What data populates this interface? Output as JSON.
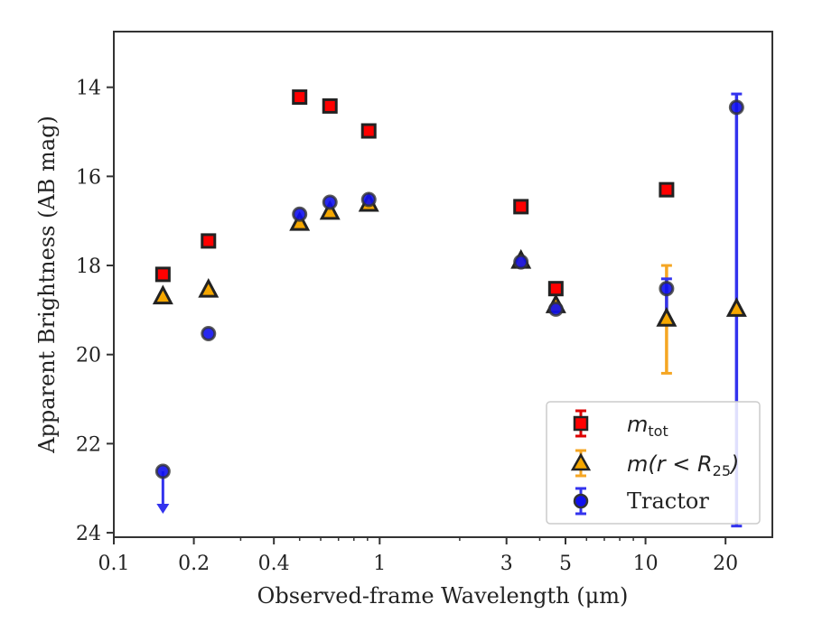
{
  "chart_data": {
    "type": "scatter",
    "xlabel": "Observed-frame Wavelength (μm)",
    "ylabel": "Apparent Brightness (AB mag)",
    "xscale": "log",
    "yaxis_inverted": true,
    "xlim": [
      0.1,
      30
    ],
    "ylim": [
      24.1,
      12.75
    ],
    "xticks": [
      {
        "value": 0.1,
        "label": "0.1"
      },
      {
        "value": 0.2,
        "label": "0.2"
      },
      {
        "value": 0.4,
        "label": "0.4"
      },
      {
        "value": 1,
        "label": "1"
      },
      {
        "value": 3,
        "label": "3"
      },
      {
        "value": 5,
        "label": "5"
      },
      {
        "value": 10,
        "label": "10"
      },
      {
        "value": 20,
        "label": "20"
      }
    ],
    "yticks": [
      {
        "value": 14,
        "label": "14"
      },
      {
        "value": 16,
        "label": "16"
      },
      {
        "value": 18,
        "label": "18"
      },
      {
        "value": 20,
        "label": "20"
      },
      {
        "value": 22,
        "label": "22"
      },
      {
        "value": 24,
        "label": "24"
      }
    ],
    "legend_position": "lower-right",
    "series": [
      {
        "legend_label": "m_tot",
        "marker": "square",
        "face_color": "#ff0000",
        "edge_color": "#222222",
        "errorbar_color": "#dd0000",
        "points": [
          {
            "x": 0.153,
            "y": 18.2
          },
          {
            "x": 0.227,
            "y": 17.45
          },
          {
            "x": 0.5,
            "y": 14.22
          },
          {
            "x": 0.65,
            "y": 14.42
          },
          {
            "x": 0.91,
            "y": 14.98
          },
          {
            "x": 3.4,
            "y": 16.68
          },
          {
            "x": 4.6,
            "y": 18.52
          },
          {
            "x": 12.0,
            "y": 16.3
          }
        ]
      },
      {
        "legend_label": "m(r < R25)",
        "marker": "triangle",
        "face_color": "#f5a700",
        "edge_color": "#222222",
        "errorbar_color": "#f5a623",
        "points": [
          {
            "x": 0.153,
            "y": 18.7
          },
          {
            "x": 0.227,
            "y": 18.55
          },
          {
            "x": 0.5,
            "y": 17.05
          },
          {
            "x": 0.65,
            "y": 16.8
          },
          {
            "x": 0.91,
            "y": 16.62
          },
          {
            "x": 3.4,
            "y": 17.9
          },
          {
            "x": 4.6,
            "y": 18.9
          },
          {
            "x": 12.0,
            "y": 19.2,
            "err_low": 18.0,
            "err_high": 20.42
          },
          {
            "x": 22.0,
            "y": 18.98
          }
        ]
      },
      {
        "legend_label": "Tractor",
        "marker": "circle",
        "face_color": "#1010ee",
        "edge_color": "#333333",
        "errorbar_color": "#3333ee",
        "points": [
          {
            "x": 0.153,
            "y": 22.62,
            "upper_limit": true
          },
          {
            "x": 0.227,
            "y": 19.53
          },
          {
            "x": 0.5,
            "y": 16.85
          },
          {
            "x": 0.65,
            "y": 16.58
          },
          {
            "x": 0.91,
            "y": 16.52
          },
          {
            "x": 3.4,
            "y": 17.92
          },
          {
            "x": 4.6,
            "y": 18.98
          },
          {
            "x": 12.0,
            "y": 18.52,
            "err_low": 18.3,
            "err_high": 19.2
          },
          {
            "x": 22.0,
            "y": 14.45,
            "err_low": 14.15,
            "err_high": 23.85
          }
        ]
      }
    ]
  },
  "legend": {
    "mtot_symbol": "m",
    "mtot_sub": "tot",
    "mr_prefix": "m(r < R",
    "mr_sub": "25",
    "mr_suffix": ")",
    "tractor_label": "Tractor"
  }
}
